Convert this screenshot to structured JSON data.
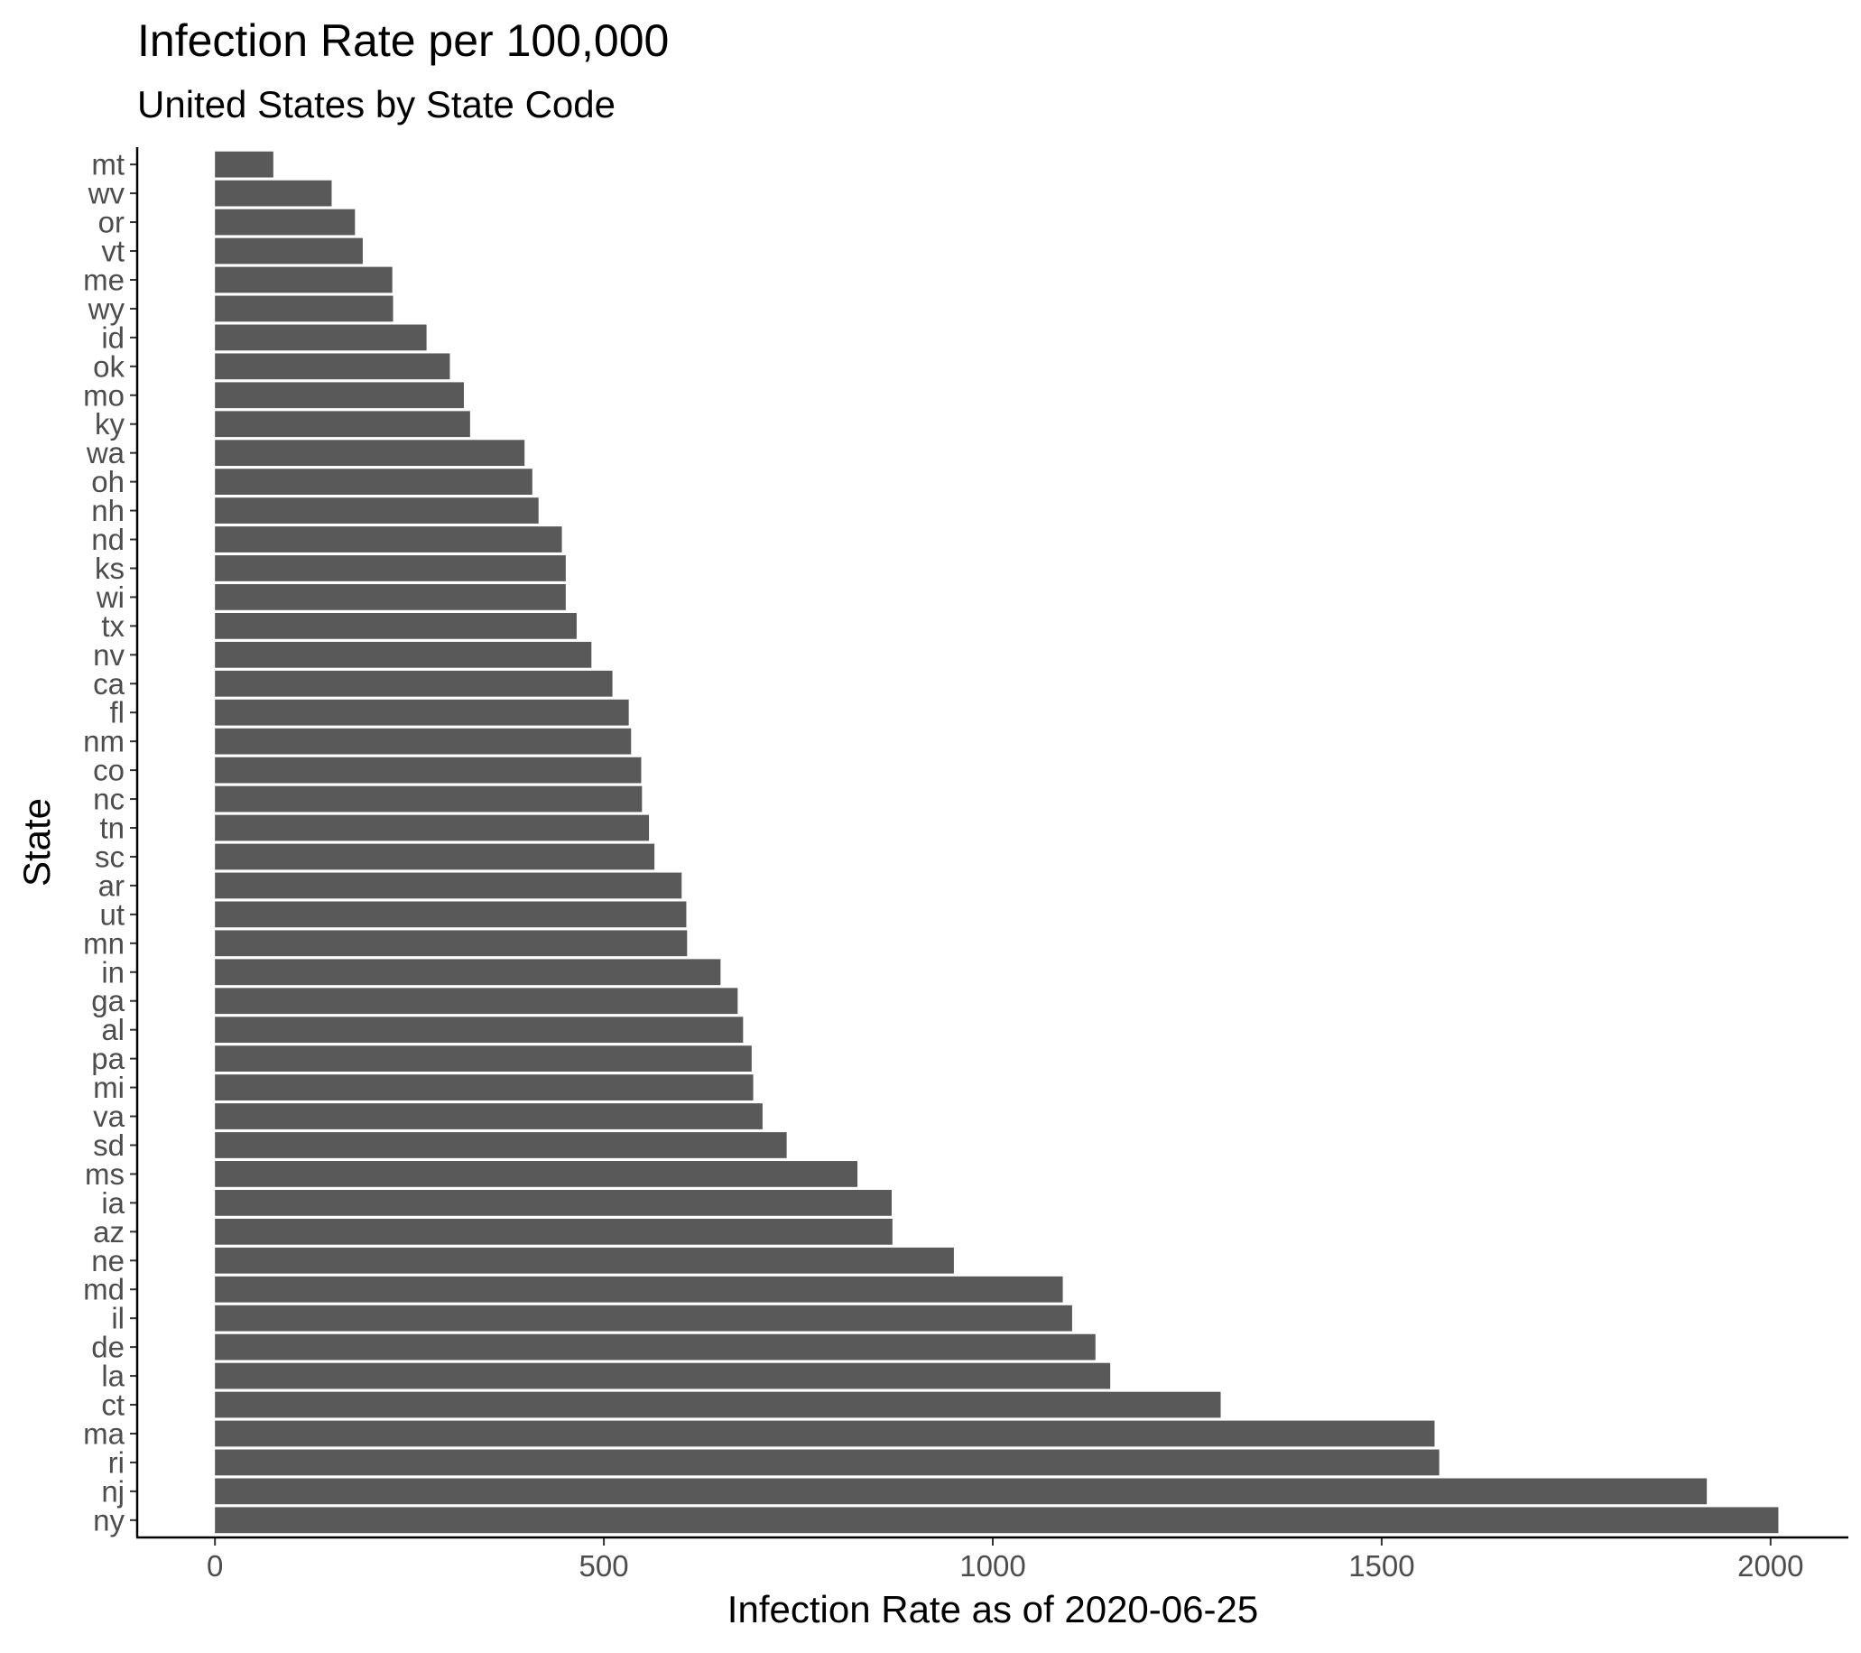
{
  "chart_data": {
    "type": "bar",
    "orientation": "horizontal",
    "title": "Infection Rate per 100,000",
    "subtitle": "United States by State Code",
    "xlabel": "Infection Rate as of 2020-06-25",
    "ylabel": "State",
    "xlim": [
      -100,
      2100
    ],
    "xticks": [
      0,
      500,
      1000,
      1500,
      2000
    ],
    "xtick_labels": [
      "0",
      "500",
      "1000",
      "1500",
      "2000"
    ],
    "grid": false,
    "bar_color": "#595959",
    "categories": [
      "mt",
      "wv",
      "or",
      "vt",
      "me",
      "wy",
      "id",
      "ok",
      "mo",
      "ky",
      "wa",
      "oh",
      "nh",
      "nd",
      "ks",
      "wi",
      "tx",
      "nv",
      "ca",
      "fl",
      "nm",
      "co",
      "nc",
      "tn",
      "sc",
      "ar",
      "ut",
      "mn",
      "in",
      "ga",
      "al",
      "pa",
      "mi",
      "va",
      "sd",
      "ms",
      "ia",
      "az",
      "ne",
      "md",
      "il",
      "de",
      "la",
      "ct",
      "ma",
      "ri",
      "nj",
      "ny"
    ],
    "values": [
      75,
      150,
      180,
      190,
      228,
      229,
      272,
      302,
      320,
      328,
      398,
      408,
      416,
      446,
      451,
      451,
      465,
      484,
      511,
      532,
      535,
      548,
      549,
      558,
      565,
      600,
      606,
      607,
      650,
      672,
      679,
      690,
      692,
      704,
      735,
      826,
      870,
      871,
      950,
      1090,
      1102,
      1132,
      1151,
      1293,
      1568,
      1574,
      1918,
      2010
    ]
  }
}
